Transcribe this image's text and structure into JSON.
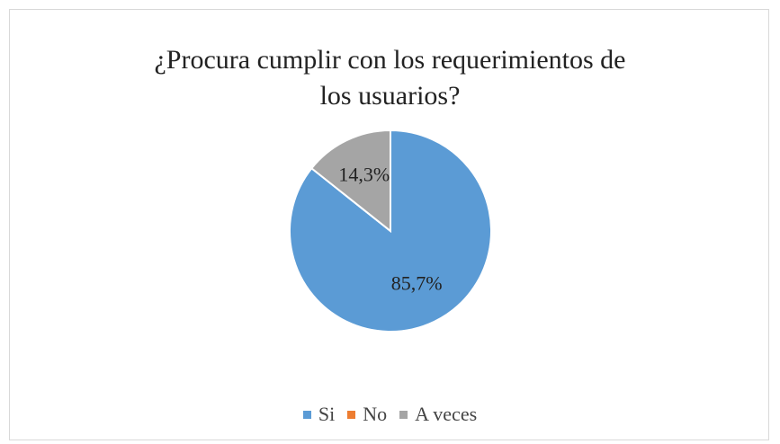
{
  "chart_data": {
    "type": "pie",
    "title": "¿Procura cumplir con los requerimientos de los usuarios?",
    "categories": [
      "Si",
      "No",
      "A veces"
    ],
    "values": [
      85.7,
      0,
      14.3
    ],
    "value_labels": [
      "85,7%",
      null,
      "14,3%"
    ],
    "colors": [
      "#5b9bd5",
      "#ed7d31",
      "#a5a5a5"
    ],
    "legend": "bottom"
  }
}
